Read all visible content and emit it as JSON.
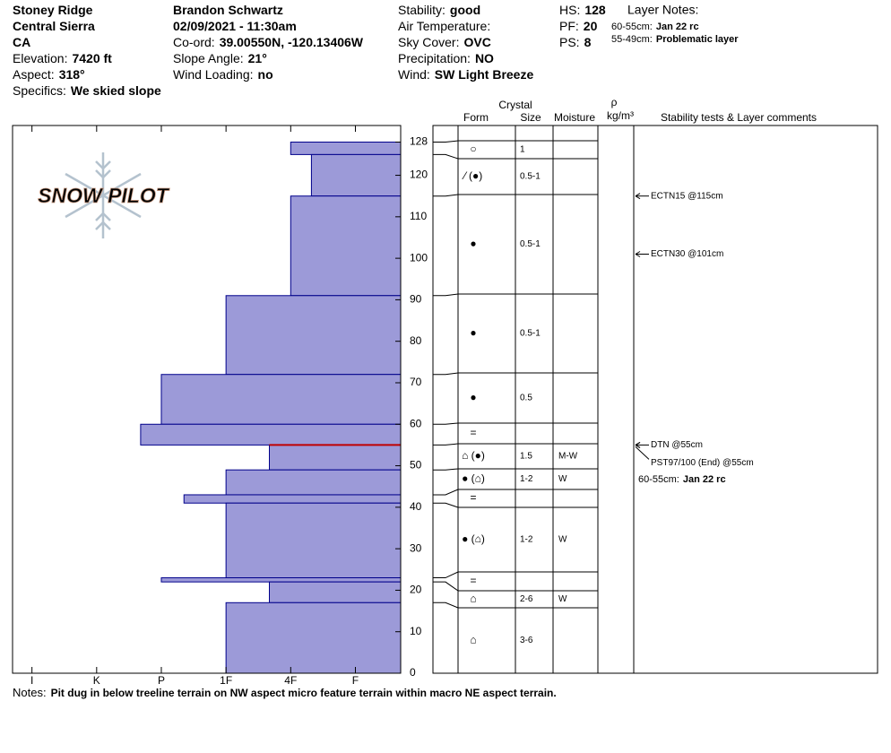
{
  "header": {
    "columns": [
      [
        {
          "value": "Stoney Ridge"
        },
        {
          "value": "Central Sierra"
        },
        {
          "value": "CA"
        },
        {
          "label": "Elevation:",
          "value": "7420 ft"
        },
        {
          "label": "Aspect:",
          "value": "318°"
        },
        {
          "label": "Specifics:",
          "value": "We skied slope"
        }
      ],
      [
        {
          "value": "Brandon Schwartz"
        },
        {
          "value": "02/09/2021 - 11:30am"
        },
        {
          "label": "Co-ord:",
          "value": "39.00550N, -120.13406W"
        },
        {
          "label": "Slope Angle:",
          "value": "21°"
        },
        {
          "label": "Wind Loading:",
          "value": "no"
        }
      ],
      [
        {
          "label": "Stability:",
          "value": "good"
        },
        {
          "label": "Air Temperature:"
        },
        {
          "label": "Sky Cover:",
          "value": "OVC"
        },
        {
          "label": "Precipitation:",
          "value": "NO"
        },
        {
          "label": "Wind:",
          "value": "SW  Light Breeze"
        }
      ],
      [
        {
          "label": "HS:",
          "value": "128"
        },
        {
          "label": "PF:",
          "value": "20"
        },
        {
          "label": "PS:",
          "value": "8"
        }
      ]
    ],
    "layer_notes": {
      "title": "Layer Notes:",
      "items": [
        {
          "depth": "60-55cm:",
          "text": "Jan 22 rc"
        },
        {
          "depth": "55-49cm:",
          "text": "Problematic layer"
        }
      ]
    }
  },
  "logo": "SNOW PILOT",
  "chart_data": {
    "type": "hardness-profile",
    "ylim": [
      0,
      132
    ],
    "yticks": [
      0,
      10,
      20,
      30,
      40,
      50,
      60,
      70,
      80,
      90,
      100,
      110,
      120,
      128
    ],
    "xlim": [
      6.3,
      0.3
    ],
    "xticks": [
      {
        "value": 6,
        "label": "I"
      },
      {
        "value": 5,
        "label": "K"
      },
      {
        "value": 4,
        "label": "P"
      },
      {
        "value": 3,
        "label": "1F"
      },
      {
        "value": 2,
        "label": "4F"
      },
      {
        "value": 1,
        "label": "F"
      }
    ],
    "color": "#9c9ad8",
    "edge_color": "#00008b",
    "layers": [
      {
        "top": 128,
        "bottom": 125,
        "hardness": 2
      },
      {
        "top": 125,
        "bottom": 115,
        "hardness": 1.68
      },
      {
        "top": 115,
        "bottom": 91,
        "hardness": 2
      },
      {
        "top": 91,
        "bottom": 72,
        "hardness": 3
      },
      {
        "top": 72,
        "bottom": 60,
        "hardness": 4
      },
      {
        "top": 60,
        "bottom": 55,
        "hardness": 4.32
      },
      {
        "top": 55,
        "bottom": 49,
        "hardness": 2.33
      },
      {
        "top": 49,
        "bottom": 43,
        "hardness": 3
      },
      {
        "top": 43,
        "bottom": 41,
        "hardness": 3.65
      },
      {
        "top": 41,
        "bottom": 23,
        "hardness": 3
      },
      {
        "top": 23,
        "bottom": 22,
        "hardness": 4
      },
      {
        "top": 22,
        "bottom": 17,
        "hardness": 2.33
      },
      {
        "top": 17,
        "bottom": 0,
        "hardness": 3
      }
    ]
  },
  "table": {
    "headers": {
      "crystal": "Crystal",
      "form": "Form",
      "size": "Size",
      "moisture": "Moisture",
      "rho": "ρ",
      "density_unit": "kg/m³",
      "comments": "Stability tests & Layer comments"
    },
    "rows": [
      {
        "form": "○",
        "size": "1"
      },
      {
        "form": "⁄ (●)",
        "size": "0.5-1"
      },
      {
        "form": "●",
        "size": "0.5-1"
      },
      {
        "form": "●",
        "size": "0.5-1"
      },
      {
        "form": "●",
        "size": "0.5"
      },
      {
        "form": "="
      },
      {
        "form": "⌂ (●)",
        "size": "1.5",
        "moisture": "M-W"
      },
      {
        "form": "● (⌂)",
        "size": "1-2",
        "moisture": "W"
      },
      {
        "form": "="
      },
      {
        "form": "● (⌂)",
        "size": "1-2",
        "moisture": "W"
      },
      {
        "form": "="
      },
      {
        "form": "⌂",
        "size": "2-6",
        "moisture": "W"
      },
      {
        "form": "⌂",
        "size": "3-6"
      }
    ],
    "tests": [
      {
        "text": "ECTN15 @115cm",
        "depth": 115
      },
      {
        "text": "ECTN30 @101cm",
        "depth": 101
      },
      {
        "text": "DTN @55cm",
        "depth": 55
      },
      {
        "text": "PST97/100 (End) @55cm",
        "depth": 55
      }
    ],
    "comments": [
      {
        "depth": "60-55cm:",
        "text": "Jan 22 rc"
      }
    ]
  },
  "notes": {
    "label": "Notes:",
    "text": "Pit dug in below treeline terrain on NW aspect micro feature terrain within macro NE aspect terrain."
  }
}
